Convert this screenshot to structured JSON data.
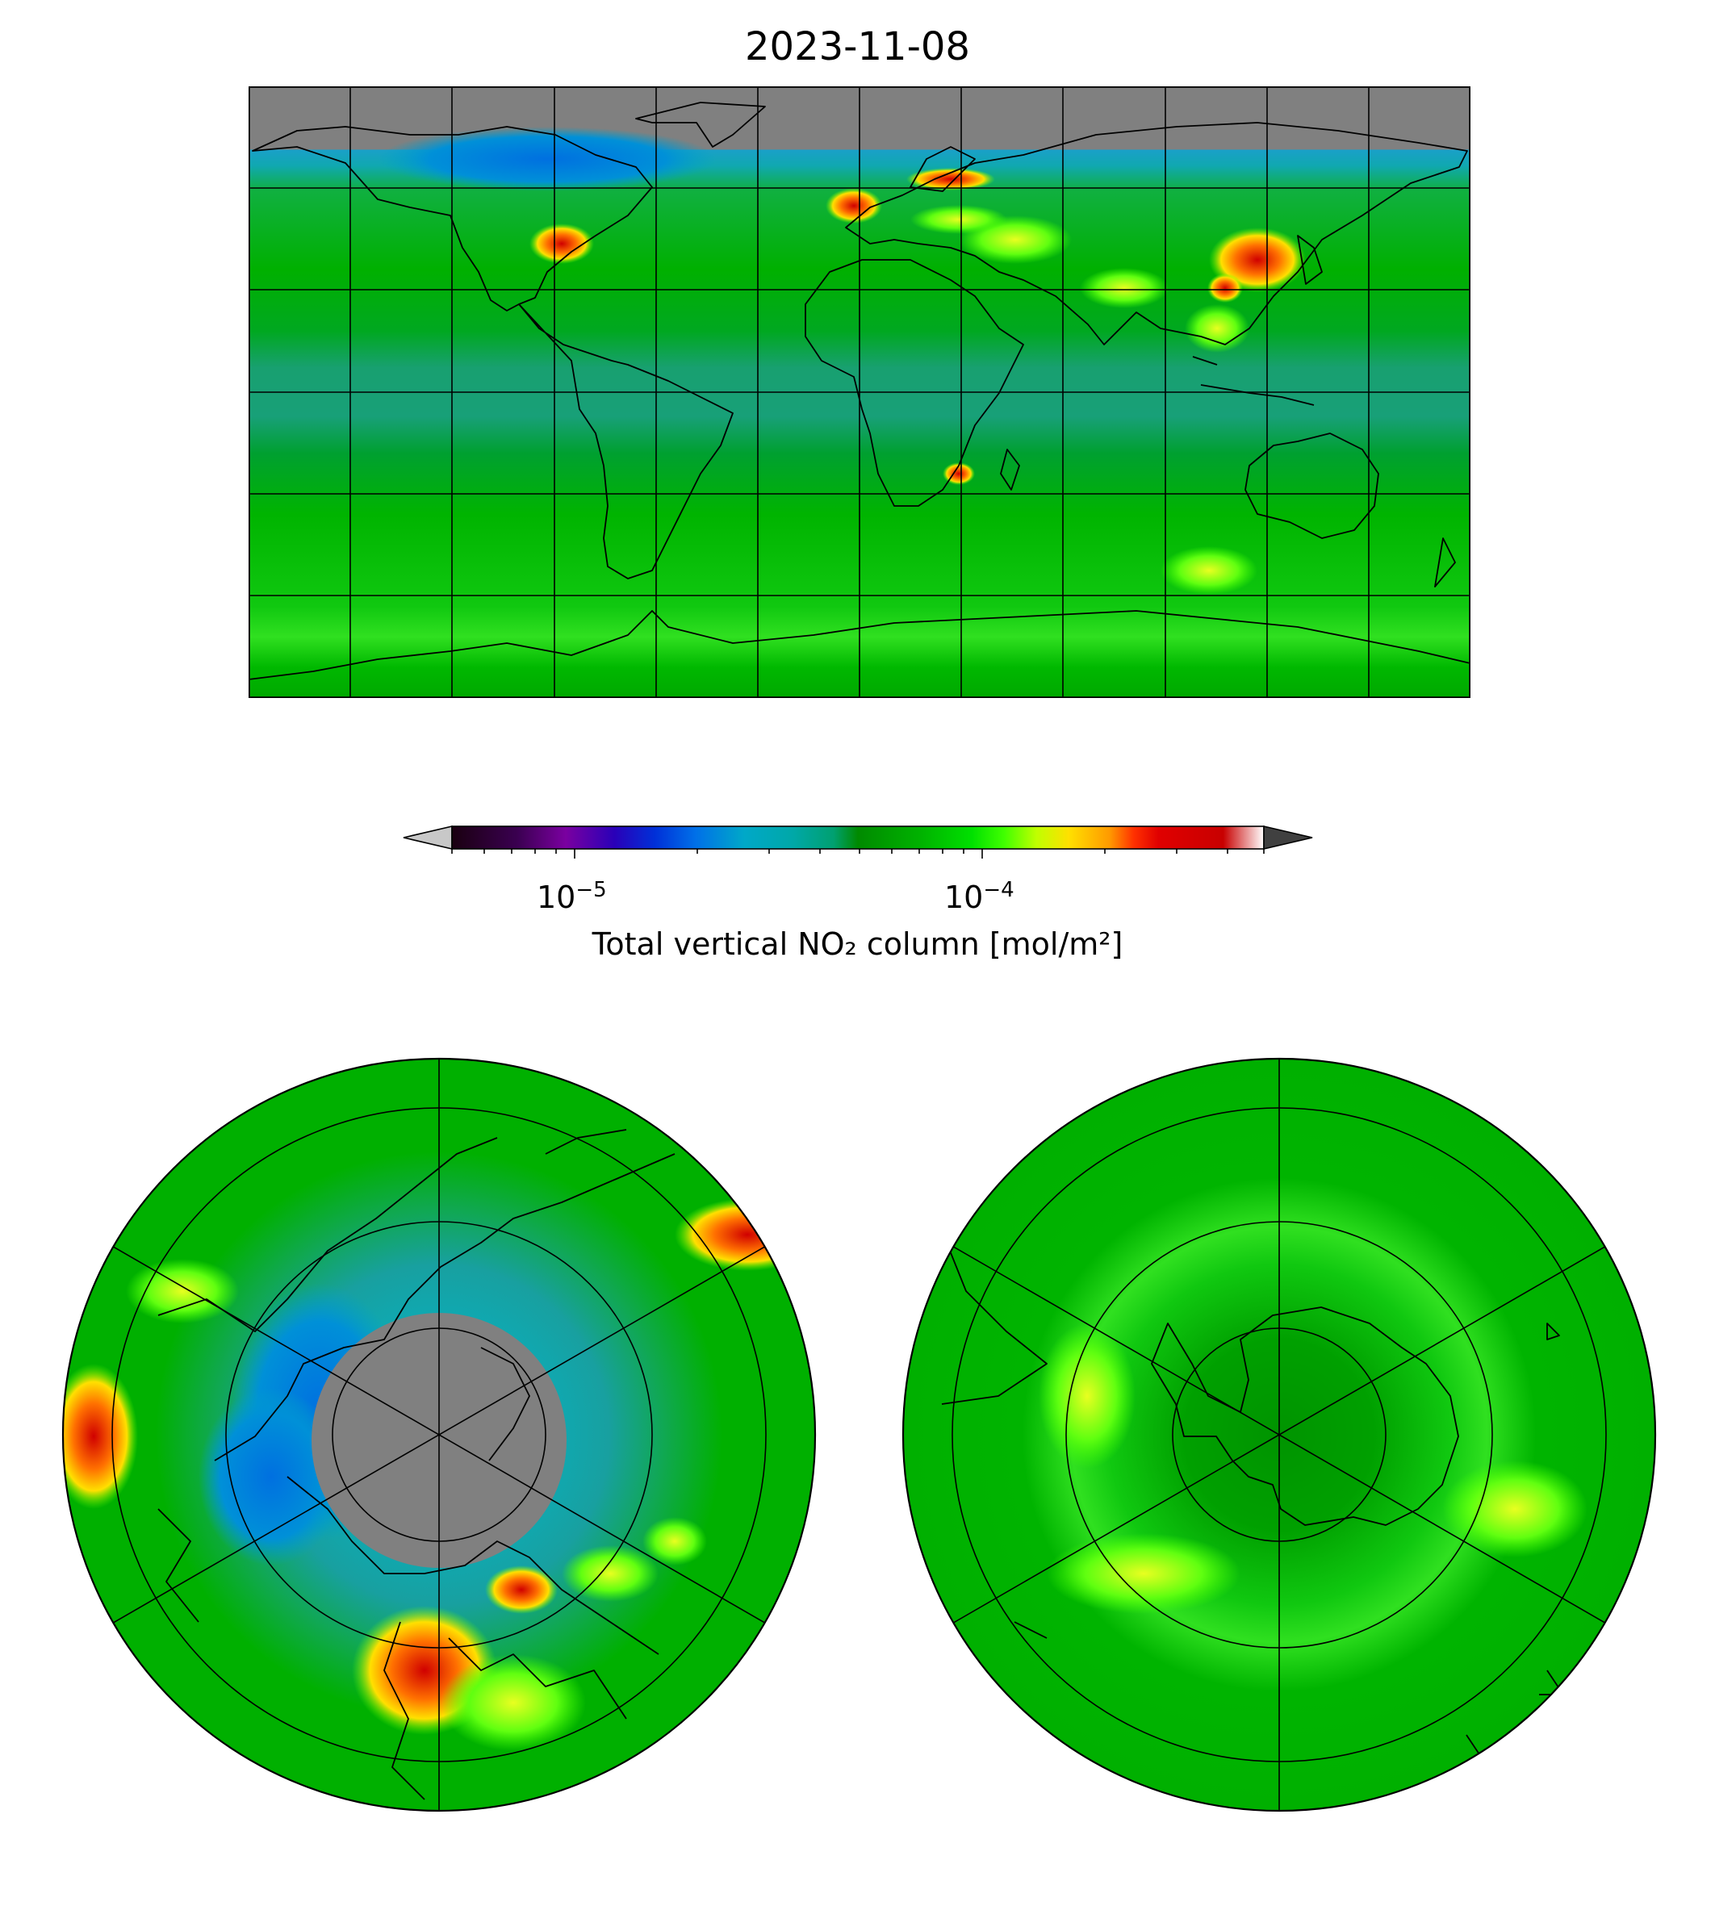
{
  "title": "2023-11-08",
  "colorbar": {
    "label": "Total vertical NO₂ column [mol/m²]",
    "scale": "log",
    "range": [
      5e-06,
      0.0005
    ],
    "major_ticks": [
      {
        "value": 1e-05,
        "base": "10",
        "exp": "−5"
      },
      {
        "value": 0.0001,
        "base": "10",
        "exp": "−4"
      }
    ],
    "extend": "both",
    "colors": [
      "#1a0010",
      "#3a0050",
      "#7a00a0",
      "#2a00b8",
      "#0030d8",
      "#0070e8",
      "#00a8c8",
      "#00a8a8",
      "#00a070",
      "#008a00",
      "#00b400",
      "#00e000",
      "#40ff00",
      "#c0ff00",
      "#ffe000",
      "#ff9a00",
      "#ff3000",
      "#e00000",
      "#c80000",
      "#ffffff"
    ],
    "under_color": "#c8c8c8",
    "over_color": "#404040"
  },
  "colors": {
    "no_data": "#808080",
    "background": "#00b400",
    "tropical_band": "#14a078",
    "arctic_band": "#00a0d0",
    "hotspot": "#e00000"
  },
  "panels": [
    {
      "name": "world",
      "projection": "plate-carree"
    },
    {
      "name": "north-polar",
      "projection": "north-polar-stereographic"
    },
    {
      "name": "south-polar",
      "projection": "south-polar-stereographic"
    }
  ]
}
